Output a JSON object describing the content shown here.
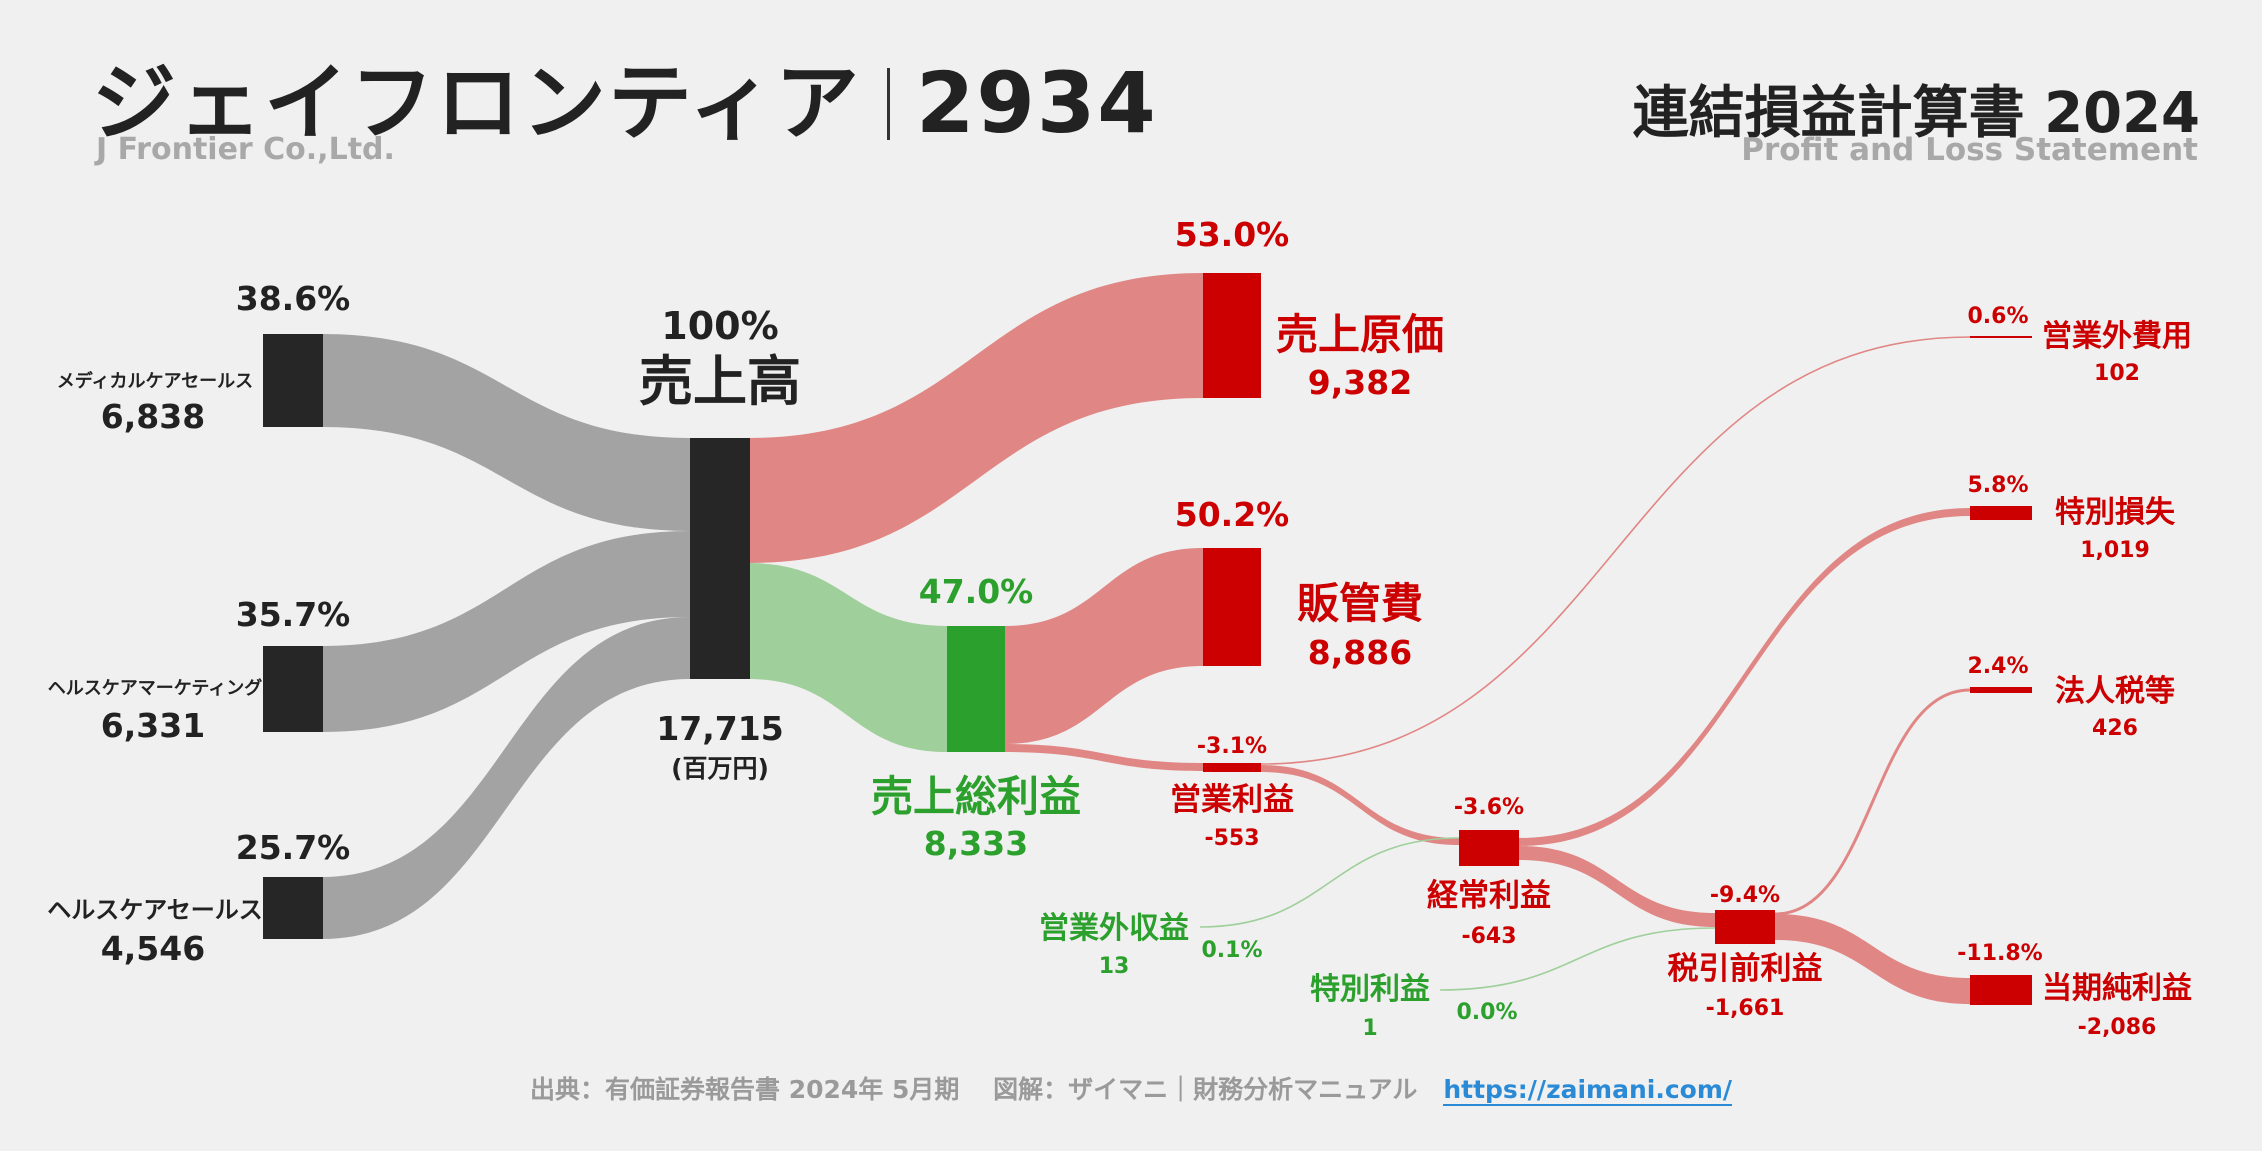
{
  "header": {
    "title_jp": "ジェイフロンティア",
    "code": "2934",
    "title_en": "J Frontier Co.,Ltd.",
    "statement_jp": "連結損益計算書 2024",
    "statement_en": "Profit and Loss Statement"
  },
  "footer": {
    "source": "出典：有価証券報告書 2024年 5月期　 図解：ザイマニ｜財務分析マニュアル",
    "link": "https://zaimani.com/"
  },
  "colors": {
    "dark": "#262626",
    "gray_flow": "#a3a3a3",
    "red": "#cc0000",
    "red_flow": "#e08785",
    "green": "#2ca02c",
    "green_flow": "#9fcf9a",
    "green_text": "#2ca02c"
  },
  "chart_data": {
    "type": "sankey",
    "unit": "(百万円)",
    "nodes": {
      "seg1": {
        "label": "メディカルケアセールス",
        "value": "6,838",
        "pct": "38.6%"
      },
      "seg2": {
        "label": "ヘルスケアマーケティング",
        "value": "6,331",
        "pct": "35.7%"
      },
      "seg3": {
        "label": "ヘルスケアセールス",
        "value": "4,546",
        "pct": "25.7%"
      },
      "revenue": {
        "label": "売上高",
        "value": "17,715",
        "pct": "100%"
      },
      "cogs": {
        "label": "売上原価",
        "value": "9,382",
        "pct": "53.0%"
      },
      "gross": {
        "label": "売上総利益",
        "value": "8,333",
        "pct": "47.0%"
      },
      "sga": {
        "label": "販管費",
        "value": "8,886",
        "pct": "50.2%"
      },
      "op": {
        "label": "営業利益",
        "value": "-553",
        "pct": "-3.1%"
      },
      "nonop_inc": {
        "label": "営業外収益",
        "value": "13",
        "pct": "0.1%"
      },
      "nonop_exp": {
        "label": "営業外費用",
        "value": "102",
        "pct": "0.6%"
      },
      "ordinary": {
        "label": "経常利益",
        "value": "-643",
        "pct": "-3.6%"
      },
      "sp_gain": {
        "label": "特別利益",
        "value": "1",
        "pct": "0.0%"
      },
      "sp_loss": {
        "label": "特別損失",
        "value": "1,019",
        "pct": "5.8%"
      },
      "pretax": {
        "label": "税引前利益",
        "value": "-1,661",
        "pct": "-9.4%"
      },
      "tax": {
        "label": "法人税等",
        "value": "426",
        "pct": "2.4%"
      },
      "net": {
        "label": "当期純利益",
        "value": "-2,086",
        "pct": "-11.8%"
      }
    },
    "links": [
      {
        "from": "メディカルケアセールス",
        "to": "売上高",
        "value": 6838
      },
      {
        "from": "ヘルスケアマーケティング",
        "to": "売上高",
        "value": 6331
      },
      {
        "from": "ヘルスケアセールス",
        "to": "売上高",
        "value": 4546
      },
      {
        "from": "売上高",
        "to": "売上原価",
        "value": 9382
      },
      {
        "from": "売上高",
        "to": "売上総利益",
        "value": 8333
      },
      {
        "from": "売上総利益",
        "to": "販管費",
        "value": 8886
      },
      {
        "from": "売上総利益",
        "to": "営業利益",
        "value": -553
      },
      {
        "from": "営業利益",
        "to": "経常利益",
        "value": -643
      },
      {
        "from": "営業外収益",
        "to": "経常利益",
        "value": 13
      },
      {
        "from": "営業利益",
        "to": "営業外費用",
        "value": 102
      },
      {
        "from": "経常利益",
        "to": "特別損失",
        "value": 1019
      },
      {
        "from": "経常利益",
        "to": "税引前利益",
        "value": -1661
      },
      {
        "from": "特別利益",
        "to": "税引前利益",
        "value": 1
      },
      {
        "from": "税引前利益",
        "to": "法人税等",
        "value": 426
      },
      {
        "from": "税引前利益",
        "to": "当期純利益",
        "value": -2086
      }
    ]
  }
}
